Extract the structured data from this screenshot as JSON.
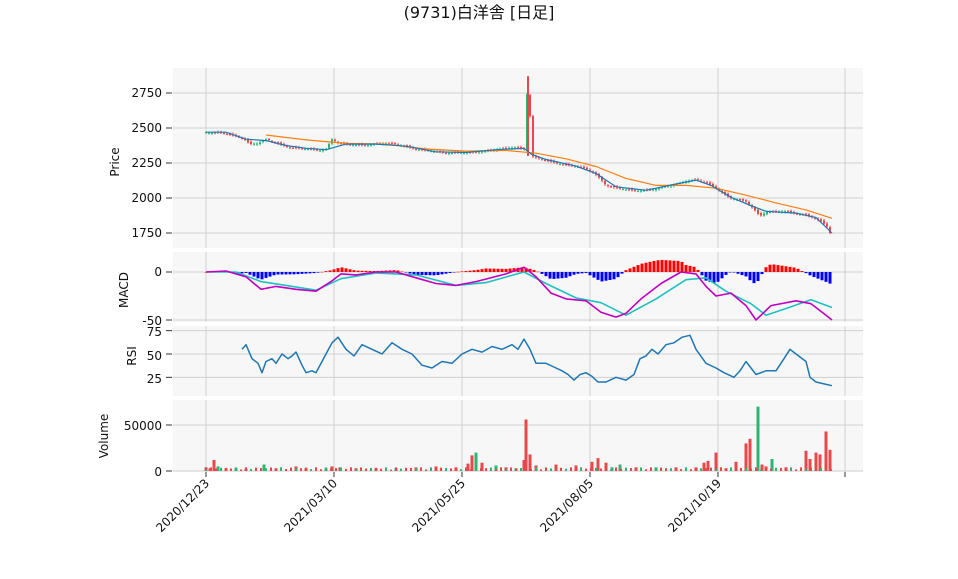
{
  "title": "(9731)白洋舎 [日足]",
  "panels": {
    "price": {
      "ylabel": "Price",
      "yticks": [
        1750,
        2000,
        2250,
        2500,
        2750
      ]
    },
    "macd": {
      "ylabel": "MACD",
      "yticks": [
        0,
        -50
      ]
    },
    "rsi": {
      "ylabel": "RSI",
      "yticks": [
        25,
        50,
        75
      ]
    },
    "volume": {
      "ylabel": "Volume",
      "yticks": [
        0,
        50000
      ]
    }
  },
  "x_ticks": [
    "2020/12/23",
    "2021/03/10",
    "2021/05/25",
    "2021/08/05",
    "2021/10/19"
  ],
  "colors": {
    "up": "#e8484a",
    "down": "#2bb673",
    "ma_short": "#1f77b4",
    "ma_long": "#ff7f0e",
    "macd_line": "#c000c0",
    "signal_line": "#20c0c0",
    "hist_pos": "#ff0000",
    "hist_neg": "#0000ff",
    "rsi": "#1f77b4",
    "grid": "#d0d0d0",
    "panel_bg": "#f7f7f7"
  },
  "chart_data": [
    {
      "type": "line",
      "panel": "price",
      "series": [],
      "ylim": [
        1600,
        2900
      ],
      "price_path": [
        [
          0,
          2470
        ],
        [
          6,
          2465
        ],
        [
          14,
          2470
        ],
        [
          22,
          2455
        ],
        [
          30,
          2440
        ],
        [
          38,
          2420
        ],
        [
          44,
          2385
        ],
        [
          52,
          2390
        ],
        [
          60,
          2420
        ],
        [
          68,
          2400
        ],
        [
          76,
          2380
        ],
        [
          84,
          2360
        ],
        [
          92,
          2355
        ],
        [
          100,
          2350
        ],
        [
          108,
          2345
        ],
        [
          114,
          2340
        ],
        [
          120,
          2350
        ],
        [
          126,
          2420
        ],
        [
          132,
          2395
        ],
        [
          140,
          2385
        ],
        [
          150,
          2380
        ],
        [
          160,
          2375
        ],
        [
          170,
          2385
        ],
        [
          180,
          2390
        ],
        [
          190,
          2385
        ],
        [
          200,
          2370
        ],
        [
          210,
          2350
        ],
        [
          220,
          2340
        ],
        [
          230,
          2330
        ],
        [
          240,
          2320
        ],
        [
          250,
          2325
        ],
        [
          260,
          2325
        ],
        [
          270,
          2330
        ],
        [
          280,
          2335
        ],
        [
          290,
          2345
        ],
        [
          300,
          2355
        ],
        [
          310,
          2360
        ],
        [
          318,
          2350
        ],
        [
          322,
          2870
        ],
        [
          326,
          2300
        ],
        [
          330,
          2290
        ],
        [
          340,
          2270
        ],
        [
          350,
          2250
        ],
        [
          360,
          2235
        ],
        [
          370,
          2225
        ],
        [
          380,
          2210
        ],
        [
          388,
          2180
        ],
        [
          394,
          2140
        ],
        [
          400,
          2090
        ],
        [
          410,
          2075
        ],
        [
          420,
          2060
        ],
        [
          430,
          2050
        ],
        [
          440,
          2055
        ],
        [
          450,
          2065
        ],
        [
          460,
          2085
        ],
        [
          470,
          2100
        ],
        [
          480,
          2120
        ],
        [
          490,
          2130
        ],
        [
          500,
          2110
        ],
        [
          508,
          2080
        ],
        [
          516,
          2040
        ],
        [
          524,
          2000
        ],
        [
          532,
          1990
        ],
        [
          540,
          1975
        ],
        [
          548,
          1920
        ],
        [
          554,
          1870
        ],
        [
          560,
          1900
        ],
        [
          570,
          1900
        ],
        [
          580,
          1905
        ],
        [
          590,
          1890
        ],
        [
          600,
          1880
        ],
        [
          608,
          1860
        ],
        [
          616,
          1830
        ],
        [
          622,
          1790
        ],
        [
          626,
          1710
        ]
      ],
      "ma_short": [
        [
          0,
          2470
        ],
        [
          20,
          2470
        ],
        [
          40,
          2420
        ],
        [
          60,
          2410
        ],
        [
          80,
          2375
        ],
        [
          100,
          2355
        ],
        [
          120,
          2345
        ],
        [
          140,
          2385
        ],
        [
          170,
          2385
        ],
        [
          200,
          2370
        ],
        [
          230,
          2330
        ],
        [
          260,
          2325
        ],
        [
          290,
          2345
        ],
        [
          318,
          2355
        ],
        [
          326,
          2310
        ],
        [
          340,
          2275
        ],
        [
          370,
          2228
        ],
        [
          390,
          2175
        ],
        [
          410,
          2080
        ],
        [
          440,
          2055
        ],
        [
          470,
          2100
        ],
        [
          490,
          2128
        ],
        [
          505,
          2090
        ],
        [
          525,
          2005
        ],
        [
          545,
          1945
        ],
        [
          560,
          1905
        ],
        [
          590,
          1892
        ],
        [
          610,
          1860
        ],
        [
          626,
          1750
        ]
      ],
      "ma_long": [
        [
          60,
          2450
        ],
        [
          100,
          2415
        ],
        [
          140,
          2390
        ],
        [
          180,
          2385
        ],
        [
          220,
          2350
        ],
        [
          260,
          2335
        ],
        [
          300,
          2340
        ],
        [
          330,
          2320
        ],
        [
          360,
          2280
        ],
        [
          390,
          2225
        ],
        [
          420,
          2140
        ],
        [
          450,
          2090
        ],
        [
          480,
          2090
        ],
        [
          510,
          2070
        ],
        [
          540,
          2020
        ],
        [
          570,
          1965
        ],
        [
          600,
          1915
        ],
        [
          626,
          1855
        ]
      ]
    },
    {
      "type": "line",
      "panel": "macd",
      "ylim": [
        -55,
        15
      ],
      "macd_line": [
        [
          0,
          0
        ],
        [
          20,
          1
        ],
        [
          40,
          -5
        ],
        [
          55,
          -18
        ],
        [
          70,
          -15
        ],
        [
          90,
          -18
        ],
        [
          110,
          -20
        ],
        [
          125,
          -10
        ],
        [
          135,
          -2
        ],
        [
          150,
          -3
        ],
        [
          170,
          0
        ],
        [
          190,
          0
        ],
        [
          210,
          -6
        ],
        [
          230,
          -12
        ],
        [
          250,
          -14
        ],
        [
          270,
          -10
        ],
        [
          300,
          -2
        ],
        [
          318,
          5
        ],
        [
          330,
          -5
        ],
        [
          345,
          -22
        ],
        [
          360,
          -28
        ],
        [
          380,
          -30
        ],
        [
          395,
          -42
        ],
        [
          410,
          -47
        ],
        [
          420,
          -43
        ],
        [
          435,
          -28
        ],
        [
          455,
          -12
        ],
        [
          475,
          0
        ],
        [
          490,
          -2
        ],
        [
          500,
          -15
        ],
        [
          510,
          -25
        ],
        [
          525,
          -22
        ],
        [
          540,
          -35
        ],
        [
          550,
          -50
        ],
        [
          565,
          -35
        ],
        [
          590,
          -30
        ],
        [
          605,
          -33
        ],
        [
          620,
          -45
        ],
        [
          626,
          -50
        ]
      ],
      "signal_line": [
        [
          0,
          0
        ],
        [
          30,
          0
        ],
        [
          55,
          -10
        ],
        [
          80,
          -14
        ],
        [
          110,
          -19
        ],
        [
          135,
          -7
        ],
        [
          170,
          -1
        ],
        [
          210,
          -3
        ],
        [
          250,
          -14
        ],
        [
          280,
          -11
        ],
        [
          318,
          0
        ],
        [
          340,
          -12
        ],
        [
          370,
          -27
        ],
        [
          395,
          -32
        ],
        [
          420,
          -45
        ],
        [
          450,
          -28
        ],
        [
          480,
          -8
        ],
        [
          500,
          -6
        ],
        [
          520,
          -20
        ],
        [
          545,
          -33
        ],
        [
          560,
          -45
        ],
        [
          580,
          -38
        ],
        [
          605,
          -29
        ],
        [
          626,
          -37
        ]
      ]
    },
    {
      "type": "line",
      "panel": "rsi",
      "ylim": [
        5,
        80
      ],
      "values": [
        [
          36,
          55
        ],
        [
          40,
          60
        ],
        [
          46,
          45
        ],
        [
          52,
          40
        ],
        [
          56,
          30
        ],
        [
          60,
          42
        ],
        [
          66,
          45
        ],
        [
          70,
          40
        ],
        [
          76,
          50
        ],
        [
          82,
          45
        ],
        [
          86,
          48
        ],
        [
          90,
          52
        ],
        [
          96,
          38
        ],
        [
          100,
          30
        ],
        [
          106,
          32
        ],
        [
          110,
          30
        ],
        [
          116,
          42
        ],
        [
          120,
          50
        ],
        [
          126,
          62
        ],
        [
          132,
          68
        ],
        [
          140,
          55
        ],
        [
          148,
          48
        ],
        [
          156,
          60
        ],
        [
          166,
          55
        ],
        [
          176,
          50
        ],
        [
          186,
          62
        ],
        [
          196,
          55
        ],
        [
          206,
          50
        ],
        [
          216,
          38
        ],
        [
          226,
          35
        ],
        [
          236,
          42
        ],
        [
          246,
          40
        ],
        [
          256,
          50
        ],
        [
          266,
          55
        ],
        [
          276,
          52
        ],
        [
          286,
          58
        ],
        [
          296,
          55
        ],
        [
          306,
          60
        ],
        [
          312,
          55
        ],
        [
          318,
          66
        ],
        [
          324,
          55
        ],
        [
          330,
          40
        ],
        [
          340,
          40
        ],
        [
          350,
          35
        ],
        [
          356,
          32
        ],
        [
          362,
          28
        ],
        [
          368,
          22
        ],
        [
          374,
          28
        ],
        [
          380,
          30
        ],
        [
          386,
          26
        ],
        [
          392,
          20
        ],
        [
          400,
          20
        ],
        [
          410,
          25
        ],
        [
          420,
          22
        ],
        [
          428,
          28
        ],
        [
          434,
          45
        ],
        [
          440,
          48
        ],
        [
          446,
          55
        ],
        [
          452,
          50
        ],
        [
          460,
          60
        ],
        [
          468,
          62
        ],
        [
          476,
          68
        ],
        [
          484,
          70
        ],
        [
          490,
          55
        ],
        [
          500,
          40
        ],
        [
          510,
          35
        ],
        [
          518,
          30
        ],
        [
          528,
          25
        ],
        [
          534,
          32
        ],
        [
          540,
          42
        ],
        [
          550,
          28
        ],
        [
          560,
          32
        ],
        [
          570,
          32
        ],
        [
          578,
          45
        ],
        [
          584,
          55
        ],
        [
          590,
          50
        ],
        [
          600,
          42
        ],
        [
          604,
          25
        ],
        [
          610,
          20
        ],
        [
          618,
          18
        ],
        [
          626,
          16
        ]
      ]
    },
    {
      "type": "bar",
      "panel": "volume",
      "ylim": [
        0,
        75000
      ],
      "bars": [
        [
          0,
          4000,
          1
        ],
        [
          4,
          3000,
          1
        ],
        [
          8,
          12000,
          1
        ],
        [
          12,
          5000,
          0
        ],
        [
          20,
          3000,
          1
        ],
        [
          30,
          3000,
          0
        ],
        [
          40,
          2500,
          1
        ],
        [
          58,
          7000,
          0
        ],
        [
          70,
          3000,
          1
        ],
        [
          90,
          5000,
          1
        ],
        [
          100,
          3000,
          1
        ],
        [
          120,
          3000,
          0
        ],
        [
          126,
          5000,
          1
        ],
        [
          134,
          4000,
          1
        ],
        [
          150,
          3000,
          1
        ],
        [
          170,
          3000,
          1
        ],
        [
          190,
          3000,
          0
        ],
        [
          210,
          4000,
          1
        ],
        [
          230,
          5000,
          1
        ],
        [
          250,
          4000,
          1
        ],
        [
          262,
          8000,
          1
        ],
        [
          266,
          17000,
          1
        ],
        [
          270,
          20000,
          0
        ],
        [
          276,
          9000,
          1
        ],
        [
          290,
          6000,
          0
        ],
        [
          300,
          4000,
          1
        ],
        [
          310,
          3000,
          0
        ],
        [
          318,
          12000,
          1
        ],
        [
          320,
          56000,
          1
        ],
        [
          324,
          18000,
          1
        ],
        [
          330,
          6000,
          1
        ],
        [
          350,
          7000,
          1
        ],
        [
          370,
          6000,
          1
        ],
        [
          386,
          10000,
          1
        ],
        [
          392,
          14000,
          1
        ],
        [
          400,
          9000,
          1
        ],
        [
          406,
          4000,
          0
        ],
        [
          414,
          7000,
          0
        ],
        [
          430,
          4000,
          1
        ],
        [
          450,
          4000,
          0
        ],
        [
          470,
          4000,
          1
        ],
        [
          490,
          4000,
          1
        ],
        [
          498,
          9000,
          1
        ],
        [
          502,
          11000,
          1
        ],
        [
          510,
          20000,
          1
        ],
        [
          520,
          3000,
          1
        ],
        [
          530,
          10000,
          1
        ],
        [
          540,
          30000,
          1
        ],
        [
          544,
          35000,
          1
        ],
        [
          552,
          70000,
          0
        ],
        [
          556,
          7000,
          1
        ],
        [
          560,
          5000,
          1
        ],
        [
          566,
          13000,
          0
        ],
        [
          580,
          4000,
          1
        ],
        [
          600,
          22000,
          1
        ],
        [
          604,
          13000,
          1
        ],
        [
          610,
          20000,
          1
        ],
        [
          614,
          18000,
          1
        ],
        [
          620,
          43000,
          1
        ],
        [
          624,
          23000,
          1
        ]
      ]
    }
  ]
}
